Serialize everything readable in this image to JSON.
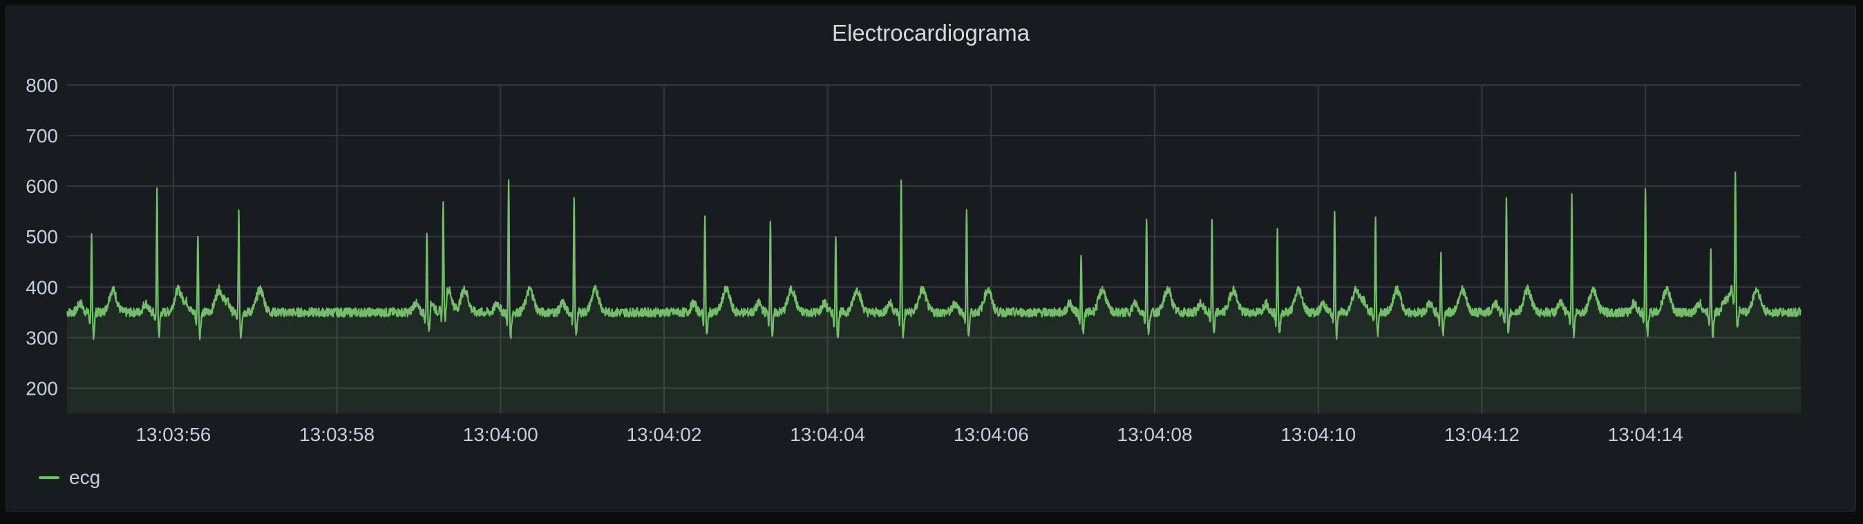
{
  "panel": {
    "title": "Electrocardiograma"
  },
  "colors": {
    "series": "#73bf69",
    "grid": "#35383e",
    "background": "#181b1f"
  },
  "chart_data": {
    "type": "area",
    "title": "Electrocardiograma",
    "y_ticks": [
      "800",
      "700",
      "600",
      "500",
      "400",
      "300",
      "200"
    ],
    "ylim": [
      150,
      800
    ],
    "x_ticks": [
      "13:03:56",
      "13:03:58",
      "13:04:00",
      "13:04:02",
      "13:04:04",
      "13:04:06",
      "13:04:08",
      "13:04:10",
      "13:04:12",
      "13:04:14"
    ],
    "xlim": [
      "13:03:54.7",
      "13:04:15.9"
    ],
    "grid": true,
    "legend_position": "bottom-left",
    "series": [
      {
        "name": "ecg",
        "baseline": 350,
        "beats": [
          {
            "t": "13:03:55.0",
            "peak": 500
          },
          {
            "t": "13:03:55.8",
            "peak": 595
          },
          {
            "t": "13:03:56.3",
            "peak": 510
          },
          {
            "t": "13:03:56.8",
            "peak": 550
          },
          {
            "t": "13:03:59.1",
            "peak": 510
          },
          {
            "t": "13:03:59.3",
            "peak": 550
          },
          {
            "t": "13:04:00.1",
            "peak": 615
          },
          {
            "t": "13:04:00.9",
            "peak": 575
          },
          {
            "t": "13:04:02.5",
            "peak": 550
          },
          {
            "t": "13:04:03.3",
            "peak": 540
          },
          {
            "t": "13:04:04.1",
            "peak": 510
          },
          {
            "t": "13:04:04.9",
            "peak": 620
          },
          {
            "t": "13:04:05.7",
            "peak": 560
          },
          {
            "t": "13:04:07.1",
            "peak": 470
          },
          {
            "t": "13:04:07.9",
            "peak": 545
          },
          {
            "t": "13:04:08.7",
            "peak": 535
          },
          {
            "t": "13:04:09.5",
            "peak": 520
          },
          {
            "t": "13:04:10.2",
            "peak": 560
          },
          {
            "t": "13:04:10.7",
            "peak": 545
          },
          {
            "t": "13:04:11.5",
            "peak": 470
          },
          {
            "t": "13:04:12.3",
            "peak": 580
          },
          {
            "t": "13:04:13.1",
            "peak": 580
          },
          {
            "t": "13:04:14.0",
            "peak": 600
          },
          {
            "t": "13:04:14.8",
            "peak": 480
          },
          {
            "t": "13:04:15.1",
            "peak": 595
          }
        ]
      }
    ]
  }
}
